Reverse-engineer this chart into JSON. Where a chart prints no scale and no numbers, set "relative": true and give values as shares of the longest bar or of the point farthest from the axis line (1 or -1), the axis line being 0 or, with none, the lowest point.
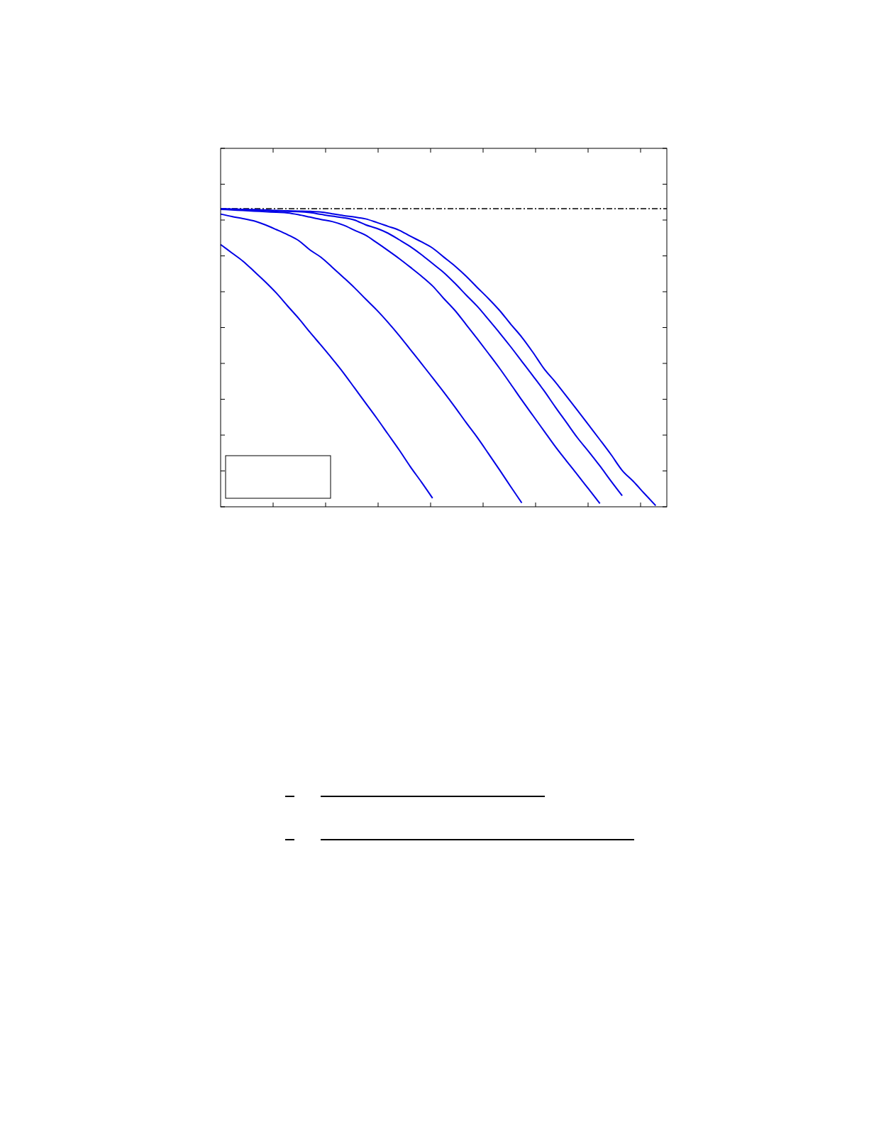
{
  "chart_data": {
    "type": "line",
    "relative": true,
    "categories": [
      null,
      null,
      null,
      null,
      null,
      null,
      null,
      null,
      null,
      null,
      null,
      null,
      null,
      null,
      null,
      null,
      null,
      null,
      null,
      null,
      null,
      null,
      null,
      null,
      null,
      null,
      null,
      null,
      null,
      null,
      null,
      null,
      null,
      null,
      null,
      null,
      null,
      null,
      null,
      null,
      null
    ],
    "series": [
      {
        "color": "#0000e6",
        "values": [
          0.88,
          0.852,
          0.824,
          0.79,
          0.755,
          0.717,
          0.674,
          0.632,
          0.586,
          0.542,
          0.497,
          0.45,
          0.399,
          0.348,
          0.297,
          0.244,
          0.191,
          0.135,
          0.083,
          0.029,
          null,
          null,
          null,
          null,
          null,
          null,
          null,
          null,
          null,
          null,
          null,
          null,
          null,
          null,
          null,
          null,
          null,
          null,
          null,
          null,
          null
        ]
      },
      {
        "color": "#0000e6",
        "values": [
          0.982,
          0.974,
          0.967,
          0.959,
          0.946,
          0.93,
          0.913,
          0.893,
          0.862,
          0.837,
          0.804,
          0.77,
          0.735,
          0.697,
          0.66,
          0.619,
          0.575,
          0.528,
          0.481,
          0.433,
          0.385,
          0.335,
          0.283,
          0.233,
          0.179,
          0.124,
          0.068,
          0.013,
          null,
          null,
          null,
          null,
          null,
          null,
          null,
          null,
          null,
          null,
          null,
          null,
          null
        ]
      },
      {
        "color": "#0000e6",
        "values": [
          0.998,
          0.996,
          0.994,
          0.992,
          0.99,
          0.988,
          0.986,
          0.98,
          0.972,
          0.964,
          0.957,
          0.945,
          0.928,
          0.911,
          0.886,
          0.86,
          0.833,
          0.804,
          0.774,
          0.741,
          0.699,
          0.659,
          0.612,
          0.564,
          0.515,
          0.465,
          0.412,
          0.358,
          0.306,
          0.254,
          0.202,
          0.154,
          0.107,
          0.059,
          0.011,
          null,
          null,
          null,
          null,
          null,
          null
        ]
      },
      {
        "color": "#0000e6",
        "values": [
          0.999,
          0.998,
          0.997,
          0.995,
          0.994,
          0.993,
          0.991,
          0.99,
          0.987,
          0.981,
          0.975,
          0.97,
          0.962,
          0.946,
          0.934,
          0.918,
          0.896,
          0.873,
          0.846,
          0.816,
          0.786,
          0.75,
          0.711,
          0.673,
          0.629,
          0.584,
          0.537,
          0.488,
          0.439,
          0.389,
          0.335,
          0.283,
          0.231,
          0.185,
          0.137,
          0.086,
          0.037,
          null,
          null,
          null,
          null
        ]
      },
      {
        "color": "#0000e6",
        "values": [
          1.0,
          0.999,
          0.998,
          0.997,
          0.996,
          0.994,
          0.993,
          0.992,
          0.991,
          0.989,
          0.983,
          0.977,
          0.972,
          0.966,
          0.954,
          0.941,
          0.928,
          0.908,
          0.889,
          0.868,
          0.838,
          0.808,
          0.774,
          0.736,
          0.699,
          0.659,
          0.613,
          0.569,
          0.518,
          0.463,
          0.419,
          0.371,
          0.323,
          0.274,
          0.225,
          0.175,
          0.122,
          0.085,
          0.044,
          0.004,
          null
        ]
      }
    ],
    "ref_lines": [
      {
        "axis": "y",
        "value": 1,
        "color": "#000000",
        "line_style": "dashdot"
      }
    ]
  }
}
